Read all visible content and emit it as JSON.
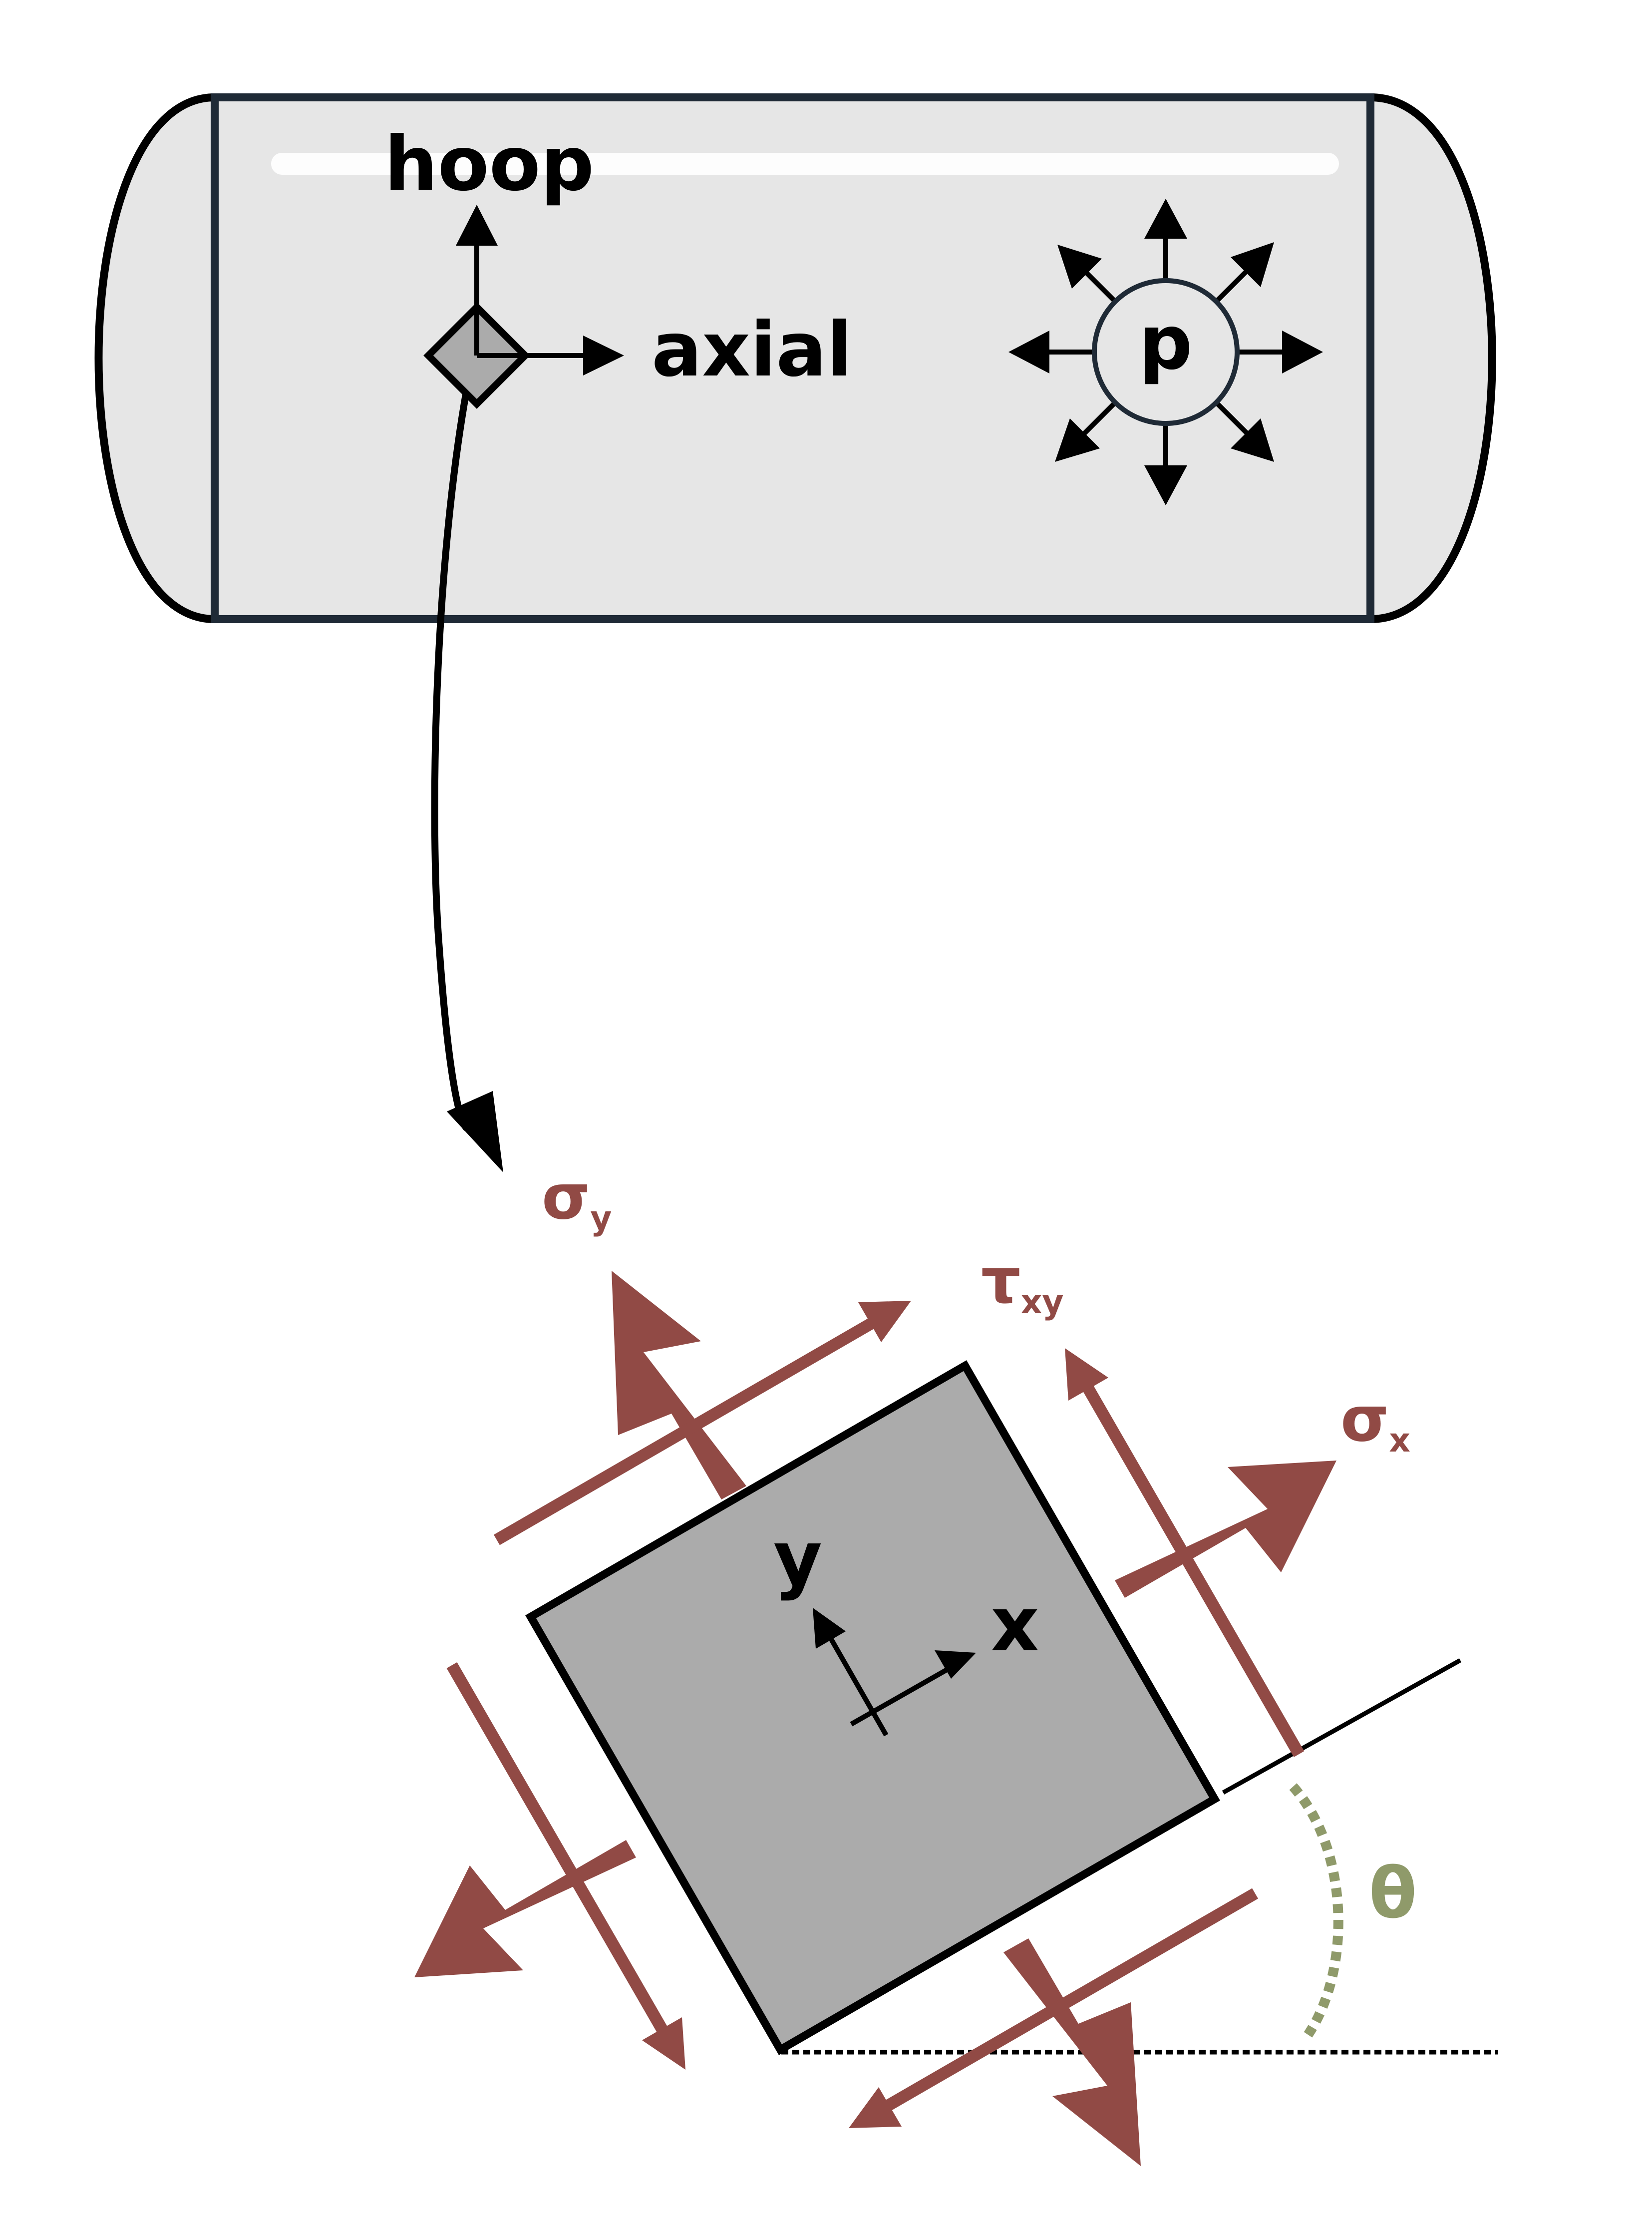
{
  "labels": {
    "hoop": "hoop",
    "axial": "axial",
    "pressure": "p",
    "sigma_y": {
      "main": "σ",
      "sub": "y"
    },
    "tau_xy": {
      "main": "τ",
      "sub": "xy"
    },
    "sigma_x": {
      "main": "σ",
      "sub": "x"
    },
    "x_axis": "x",
    "y_axis": "y",
    "theta": "θ"
  },
  "colors": {
    "stress_arrow": "#914A45",
    "theta": "#8F9A6A",
    "vessel_fill": "#E6E6E6",
    "vessel_outline": "#1F2A36",
    "element_fill": "#ABABAB",
    "ink": "#000000"
  }
}
